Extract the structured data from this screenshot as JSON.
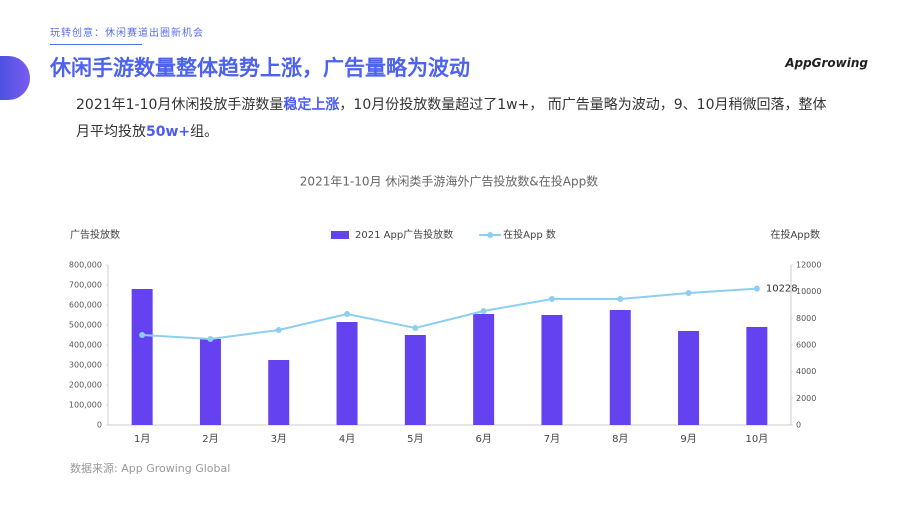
{
  "header": {
    "kicker": "玩转创意：休闲赛道出圈新机会",
    "title": "休闲手游数量整体趋势上涨，广告量略为波动",
    "logo": "AppGrowing"
  },
  "summary": [
    "2021年1-10月休闲投放手游数量",
    "稳定上涨",
    "，10月份投放数量超过了1w+， 而广告量略为波动，9、10月稍微回落，整体月平均投放",
    "50w+",
    "组。"
  ],
  "source": "数据来源: App Growing Global",
  "chart_data": {
    "type": "bar",
    "title": "2021年1-10月 休闲类手游海外广告投放数&在投App数",
    "ylabel": "广告投放数",
    "y2label": "在投App数",
    "categories": [
      "1月",
      "2月",
      "3月",
      "4月",
      "5月",
      "6月",
      "7月",
      "8月",
      "9月",
      "10月"
    ],
    "series": [
      {
        "name": "2021 App广告投放数",
        "type": "bar",
        "color": "#6442f0",
        "values": [
          680000,
          430000,
          325000,
          515000,
          450000,
          555000,
          550000,
          575000,
          470000,
          490000
        ]
      },
      {
        "name": "在投App 数",
        "type": "line",
        "axis": "y2",
        "color": "#8ccff0",
        "values": [
          6750,
          6450,
          7125,
          8325,
          7275,
          8550,
          9450,
          9450,
          9900,
          10228
        ]
      }
    ],
    "ylim": [
      0,
      800000
    ],
    "yticks": [
      0,
      {
        "value": 100000,
        "label": "100,000"
      },
      {
        "value": 200000,
        "label": "200,000"
      },
      {
        "value": 300000,
        "label": "300,000"
      },
      {
        "value": 400000,
        "label": "400,000"
      },
      {
        "value": 500000,
        "label": "500,000"
      },
      {
        "value": 600000,
        "label": "600,000"
      },
      {
        "value": 700000,
        "label": "700,000"
      },
      {
        "value": 800000,
        "label": "800,000"
      }
    ],
    "y2lim": [
      0,
      12000
    ],
    "y2ticks": [
      0,
      2000,
      4000,
      6000,
      8000,
      10000,
      12000
    ]
  }
}
